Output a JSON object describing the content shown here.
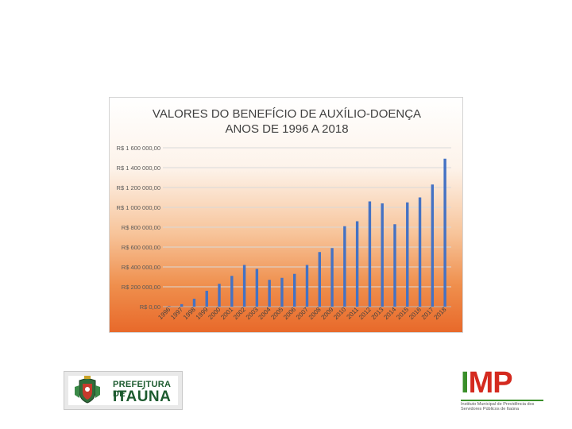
{
  "chart_data": {
    "type": "bar",
    "title_lines": [
      "VALORES DO BENEFÍCIO DE AUXÍLIO-DOENÇA",
      "ANOS DE 1996 A 2018"
    ],
    "categories": [
      "1996",
      "1997",
      "1998",
      "1999",
      "2000",
      "2001",
      "2002",
      "2003",
      "2004",
      "2005",
      "2006",
      "2007",
      "2008",
      "2009",
      "2010",
      "2011",
      "2012",
      "2013",
      "2014",
      "2015",
      "2016",
      "2017",
      "2018"
    ],
    "values": [
      5000,
      25000,
      80000,
      160000,
      230000,
      310000,
      420000,
      380000,
      270000,
      290000,
      330000,
      420000,
      550000,
      590000,
      810000,
      860000,
      1060000,
      1040000,
      830000,
      1050000,
      1100000,
      1230000,
      1490000
    ],
    "y_tick_labels": [
      "R$ 0,00",
      "R$ 200 000,00",
      "R$ 400 000,00",
      "R$ 600 000,00",
      "R$ 800 000,00",
      "R$ 1 000 000,00",
      "R$ 1 200 000,00",
      "R$ 1 400 000,00",
      "R$ 1 600 000,00"
    ],
    "ylim": [
      0,
      1600000
    ],
    "grid": true,
    "bar_color": "#4472c4"
  },
  "logos": {
    "left": {
      "line1": "PREFEITURA DE",
      "line2": "ITAÚNA"
    },
    "right": {
      "i": "I",
      "mp": "MP",
      "subtitle": "Instituto Municipal de Previdência dos Servidores Públicos de Itaúna"
    }
  }
}
